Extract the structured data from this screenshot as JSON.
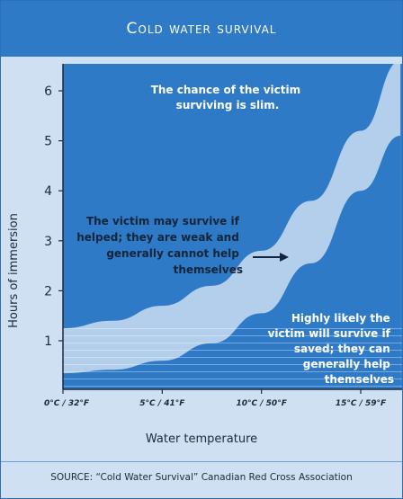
{
  "chart_data": {
    "type": "area",
    "title": "Cold water survival",
    "xlabel": "Water temperature",
    "ylabel": "Hours of immersion",
    "source": "SOURCE: “Cold Water Survival” Canadian Red Cross Association",
    "x_ticks": [
      "0°C / 32°F",
      "5°C / 41°F",
      "10°C / 50°F",
      "15°C / 59°F"
    ],
    "y_ticks": [
      1,
      2,
      3,
      4,
      5,
      6
    ],
    "xlim": [
      0,
      15
    ],
    "ylim": [
      0,
      7
    ],
    "bands": [
      {
        "description": "The chance of the victim surviving is slim.",
        "region": "above upper curve"
      },
      {
        "description": "The victim may survive if helped; they are weak and generally cannot help themselves",
        "region": "between curves",
        "upper_curve": {
          "x": [
            0,
            2.5,
            5,
            7.5,
            10,
            12.5,
            15,
            17
          ],
          "y": [
            1.25,
            1.4,
            1.7,
            2.1,
            2.8,
            3.8,
            5.2,
            6.6
          ]
        }
      },
      {
        "description": "Highly likely the victim will survive if saved; they can generally help themselves",
        "region": "below lower curve",
        "lower_curve": {
          "x": [
            0,
            2.5,
            5,
            7.5,
            10,
            12.5,
            15,
            17
          ],
          "y": [
            0.35,
            0.42,
            0.6,
            0.95,
            1.55,
            2.55,
            4.0,
            5.1
          ]
        }
      }
    ],
    "colors": {
      "background": "#cfe0f3",
      "top_region": "#2f7ac6",
      "middle_band": "#b3cfec",
      "bottom_band": "#2f7ac6",
      "title_bar": "#2f7ac6"
    }
  }
}
